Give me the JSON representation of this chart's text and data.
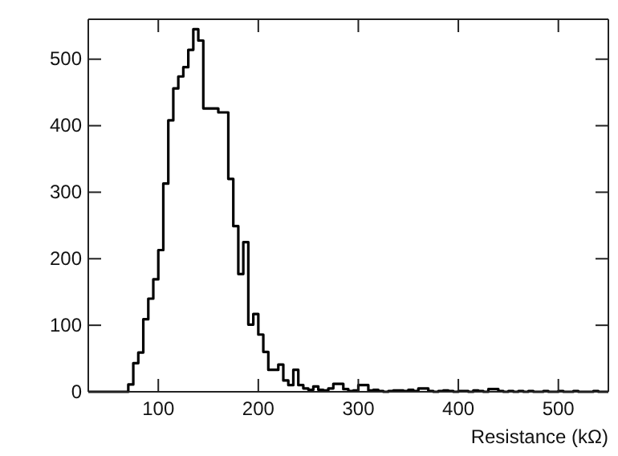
{
  "chart_data": {
    "type": "histogram",
    "xlabel": "Resistance (kΩ)",
    "bins": [
      30,
      35,
      40,
      45,
      50,
      55,
      60,
      65,
      70,
      75,
      80,
      85,
      90,
      95,
      100,
      105,
      110,
      115,
      120,
      125,
      130,
      135,
      140,
      145,
      150,
      155,
      160,
      165,
      170,
      175,
      180,
      185,
      190,
      195,
      200,
      205,
      210,
      215,
      220,
      225,
      230,
      235,
      240,
      245,
      250,
      255,
      260,
      265,
      270,
      275,
      280,
      285,
      290,
      295,
      300,
      305,
      310,
      315,
      320,
      325,
      330,
      335,
      340,
      345,
      350,
      355,
      360,
      365,
      370,
      375,
      380,
      385,
      390,
      395,
      400,
      405,
      410,
      415,
      420,
      425,
      430,
      435,
      440,
      445,
      450,
      455,
      460,
      465,
      470,
      475,
      480,
      485,
      490,
      495,
      500,
      505,
      510,
      515,
      520,
      525,
      530,
      535,
      540,
      545,
      550
    ],
    "values": [
      0,
      0,
      0,
      0,
      0,
      0,
      0,
      0,
      11,
      43,
      59,
      109,
      140,
      169,
      213,
      313,
      408,
      456,
      474,
      488,
      514,
      545,
      528,
      426,
      426,
      426,
      420,
      420,
      320,
      249,
      177,
      225,
      101,
      117,
      86,
      60,
      33,
      33,
      41,
      17,
      10,
      33,
      10,
      5,
      3,
      8,
      3,
      2,
      5,
      12,
      12,
      4,
      1,
      2,
      10,
      10,
      2,
      3,
      1,
      0,
      1,
      2,
      2,
      1,
      3,
      1,
      5,
      5,
      1,
      0,
      1,
      2,
      1,
      0,
      1,
      1,
      0,
      2,
      1,
      0,
      4,
      4,
      1,
      0,
      1,
      0,
      1,
      0,
      1,
      0,
      0,
      1,
      0,
      0,
      1,
      0,
      0,
      1,
      0,
      0,
      0,
      1,
      0,
      0
    ],
    "color": "#000000",
    "xlim": [
      30,
      550
    ],
    "ylim": [
      0,
      560
    ],
    "xticks": [
      100,
      200,
      300,
      400,
      500
    ],
    "yticks": [
      0,
      100,
      200,
      300,
      400,
      500
    ],
    "grid": false
  }
}
